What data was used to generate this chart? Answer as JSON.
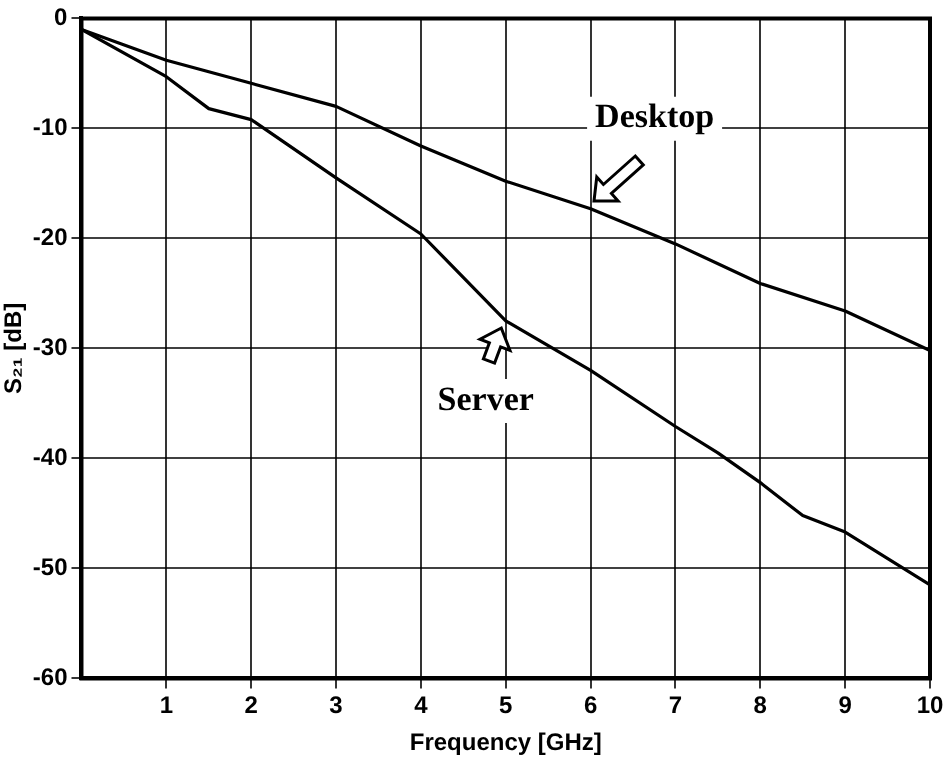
{
  "chart_data": {
    "type": "line",
    "xlabel": "Frequency [GHz]",
    "ylabel": "S₂₁ [dB]",
    "x": [
      0,
      1,
      2,
      3,
      4,
      5,
      6,
      7,
      8,
      9,
      10
    ],
    "series": [
      {
        "name": "Desktop",
        "color": "#000000",
        "values": [
          -1,
          -3.8,
          -5.9,
          -8.0,
          -11.6,
          -14.8,
          -17.3,
          -20.5,
          -24.1,
          -26.6,
          -30.2
        ]
      },
      {
        "name": "Server",
        "color": "#000000",
        "x": [
          0,
          1,
          1.5,
          2,
          3,
          4,
          5,
          6,
          7,
          7.5,
          8,
          8.5,
          9,
          10
        ],
        "values": [
          -1,
          -5.3,
          -8.2,
          -9.2,
          -14.5,
          -19.6,
          -27.5,
          -32,
          -37.1,
          -39.5,
          -42.2,
          -45.2,
          -46.7,
          -51.5
        ]
      }
    ],
    "xlim": [
      0,
      10
    ],
    "xticks": [
      1,
      2,
      3,
      4,
      5,
      6,
      7,
      8,
      9,
      10
    ],
    "ylim": [
      -60,
      0
    ],
    "yticks": [
      -60,
      -50,
      -40,
      -30,
      -20,
      -10,
      0
    ],
    "grid": true,
    "marker": "none",
    "line_style": "solid"
  }
}
